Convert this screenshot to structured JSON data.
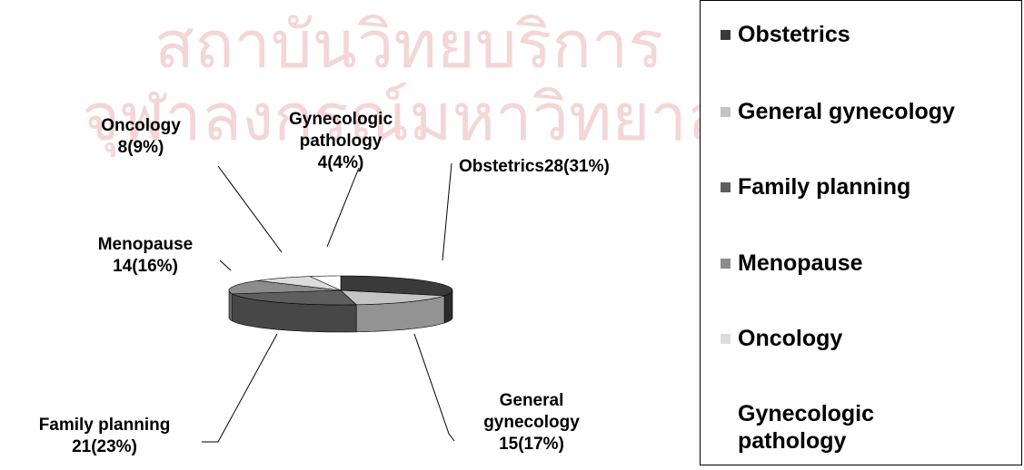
{
  "watermark": [
    "สถาบันวิทยบริการ",
    "จุฬาลงกรณ์มหาวิทยาลัย"
  ],
  "chart_data": {
    "type": "pie",
    "categories": [
      "Obstetrics",
      "General gynecology",
      "Family planning",
      "Menopause",
      "Oncology",
      "Gynecologic pathology"
    ],
    "values": [
      28,
      15,
      21,
      14,
      8,
      4
    ],
    "value_labels": [
      "28(31%)",
      "15(17%)",
      "21(23%)",
      "14(16%)",
      "8(9%)",
      "4(4%)"
    ],
    "colors": [
      "#3a3a3a",
      "#c4c4c4",
      "#5e5e5e",
      "#8c8c8c",
      "#dcdcdc",
      "#ffffff"
    ],
    "legend": "right"
  }
}
